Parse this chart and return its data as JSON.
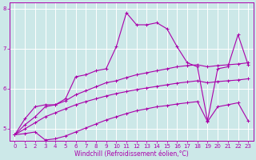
{
  "xlabel": "Windchill (Refroidissement éolien,°C)",
  "bg_color": "#cce8e8",
  "line_color": "#aa00aa",
  "grid_color": "#ffffff",
  "xlim": [
    -0.5,
    23.5
  ],
  "ylim": [
    4.7,
    8.15
  ],
  "xticks": [
    0,
    1,
    2,
    3,
    4,
    5,
    6,
    7,
    8,
    9,
    10,
    11,
    12,
    13,
    14,
    15,
    16,
    17,
    18,
    19,
    20,
    21,
    22,
    23
  ],
  "yticks": [
    5,
    6,
    7,
    8
  ],
  "lines": [
    {
      "x": [
        0,
        1,
        2,
        3,
        4,
        5,
        6,
        7,
        8,
        9,
        10,
        11,
        12,
        13,
        14,
        15,
        16,
        17,
        18,
        19,
        20,
        21,
        22,
        23
      ],
      "y": [
        4.85,
        5.25,
        5.55,
        5.6,
        5.6,
        5.75,
        6.3,
        6.35,
        6.45,
        6.5,
        7.05,
        7.9,
        7.6,
        7.6,
        7.65,
        7.5,
        7.05,
        6.65,
        6.55,
        5.2,
        6.5,
        6.55,
        7.35,
        6.6
      ]
    },
    {
      "x": [
        0,
        1,
        2,
        3,
        4,
        5,
        6,
        7,
        8,
        9,
        10,
        11,
        12,
        13,
        14,
        15,
        16,
        17,
        18,
        19,
        20,
        21,
        22,
        23
      ],
      "y": [
        4.85,
        5.1,
        5.3,
        5.55,
        5.6,
        5.7,
        5.85,
        5.95,
        6.05,
        6.15,
        6.2,
        6.28,
        6.35,
        6.4,
        6.45,
        6.5,
        6.55,
        6.58,
        6.6,
        6.55,
        6.58,
        6.6,
        6.62,
        6.65
      ]
    },
    {
      "x": [
        0,
        1,
        2,
        3,
        4,
        5,
        6,
        7,
        8,
        9,
        10,
        11,
        12,
        13,
        14,
        15,
        16,
        17,
        18,
        19,
        20,
        21,
        22,
        23
      ],
      "y": [
        4.85,
        5.0,
        5.15,
        5.3,
        5.4,
        5.5,
        5.6,
        5.68,
        5.75,
        5.82,
        5.88,
        5.93,
        5.98,
        6.02,
        6.06,
        6.1,
        6.14,
        6.17,
        6.2,
        6.15,
        6.18,
        6.2,
        6.22,
        6.25
      ]
    },
    {
      "x": [
        0,
        1,
        2,
        3,
        4,
        5,
        6,
        7,
        8,
        9,
        10,
        11,
        12,
        13,
        14,
        15,
        16,
        17,
        18,
        19,
        20,
        21,
        22,
        23
      ],
      "y": [
        4.85,
        4.88,
        4.92,
        4.72,
        4.75,
        4.82,
        4.92,
        5.02,
        5.12,
        5.22,
        5.3,
        5.38,
        5.45,
        5.5,
        5.55,
        5.58,
        5.62,
        5.65,
        5.68,
        5.18,
        5.55,
        5.6,
        5.65,
        5.2
      ]
    }
  ]
}
